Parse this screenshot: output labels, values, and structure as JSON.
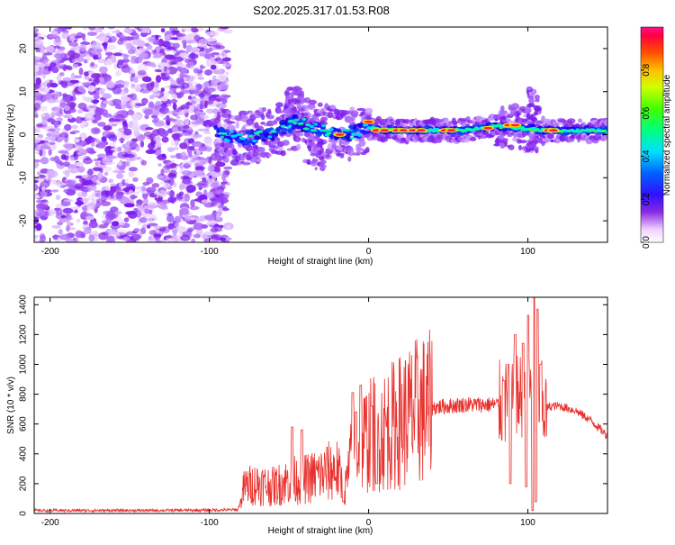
{
  "title": "S202.2025.317.01.53.R08",
  "colors": {
    "snr_line": "#e8302c",
    "noise_purple": "#8a2be2",
    "background": "#ffffff"
  },
  "chart_data": [
    {
      "type": "heatmap",
      "title": "S202.2025.317.01.53.R08",
      "xlabel": "Height of straight line (km)",
      "ylabel": "Frequency (Hz)",
      "xlim": [
        -210,
        150
      ],
      "ylim": [
        -25,
        25
      ],
      "xticks": [
        "-200",
        "-100",
        "0",
        "100"
      ],
      "xtick_values": [
        -200,
        -100,
        0,
        100
      ],
      "yticks": [
        "20",
        "10",
        "0",
        "-10",
        "-20"
      ],
      "ytick_values": [
        20,
        10,
        0,
        -10,
        -20
      ],
      "colorbar": {
        "label": "Normalized spectral amplitude",
        "range": [
          0.0,
          1.0
        ],
        "ticks": [
          "0.0",
          "0.2",
          "0.4",
          "0.6",
          "0.8"
        ],
        "tick_values": [
          0.0,
          0.2,
          0.4,
          0.6,
          0.8
        ]
      },
      "description_regions": {
        "noise_region_x": [
          -210,
          -88
        ],
        "signal_trace": [
          {
            "x": -95,
            "f": 0.5
          },
          {
            "x": -80,
            "f": -1.0
          },
          {
            "x": -60,
            "f": 0.5
          },
          {
            "x": -45,
            "f": 3.0
          },
          {
            "x": -30,
            "f": 1.0
          },
          {
            "x": -15,
            "f": 0.0
          },
          {
            "x": 0,
            "f": 1.5
          },
          {
            "x": 20,
            "f": 1.0
          },
          {
            "x": 40,
            "f": 1.0
          },
          {
            "x": 60,
            "f": 1.0
          },
          {
            "x": 80,
            "f": 2.0
          },
          {
            "x": 95,
            "f": 1.5
          },
          {
            "x": 110,
            "f": 1.0
          },
          {
            "x": 130,
            "f": 1.0
          },
          {
            "x": 150,
            "f": 1.0
          }
        ]
      }
    },
    {
      "type": "line",
      "xlabel": "Height of straight line (km)",
      "ylabel": "SNR (10 * v/v)",
      "xlim": [
        -210,
        150
      ],
      "ylim": [
        0,
        1450
      ],
      "xticks": [
        "-200",
        "-100",
        "0",
        "100"
      ],
      "xtick_values": [
        -200,
        -100,
        0,
        100
      ],
      "yticks": [
        "0",
        "200",
        "400",
        "600",
        "800",
        "1000",
        "1200",
        "1400"
      ],
      "ytick_values": [
        0,
        200,
        400,
        600,
        800,
        1000,
        1200,
        1400
      ],
      "series": [
        {
          "name": "SNR",
          "envelope_x": [
            -210,
            -150,
            -100,
            -82,
            -78,
            -70,
            -60,
            -50,
            -40,
            -30,
            -20,
            -15,
            -10,
            0,
            10,
            20,
            30,
            40,
            50,
            60,
            70,
            80,
            90,
            95,
            100,
            105,
            110,
            115,
            120,
            130,
            140,
            150
          ],
          "envelope_y": [
            20,
            20,
            22,
            25,
            180,
            200,
            180,
            220,
            230,
            260,
            300,
            150,
            420,
            520,
            560,
            620,
            680,
            710,
            720,
            730,
            730,
            730,
            740,
            780,
            800,
            820,
            700,
            720,
            720,
            690,
            620,
            520
          ],
          "spikes": [
            {
              "x": -48,
              "y": 580
            },
            {
              "x": -42,
              "y": 560
            },
            {
              "x": -10,
              "y": 810
            },
            {
              "x": -8,
              "y": 680
            },
            {
              "x": -5,
              "y": 860
            },
            {
              "x": 2,
              "y": 720
            },
            {
              "x": 85,
              "y": 890
            },
            {
              "x": 88,
              "y": 1000
            },
            {
              "x": 92,
              "y": 1200
            },
            {
              "x": 97,
              "y": 1140
            },
            {
              "x": 100,
              "y": 1330
            },
            {
              "x": 104,
              "y": 1450
            },
            {
              "x": 106,
              "y": 1370
            },
            {
              "x": 108,
              "y": 1000
            }
          ],
          "dips": [
            {
              "x": -16,
              "y": 80
            },
            {
              "x": 5,
              "y": 200
            },
            {
              "x": 89,
              "y": 200
            },
            {
              "x": 99,
              "y": 180
            },
            {
              "x": 103,
              "y": 20
            },
            {
              "x": 105,
              "y": 80
            }
          ]
        }
      ]
    }
  ]
}
